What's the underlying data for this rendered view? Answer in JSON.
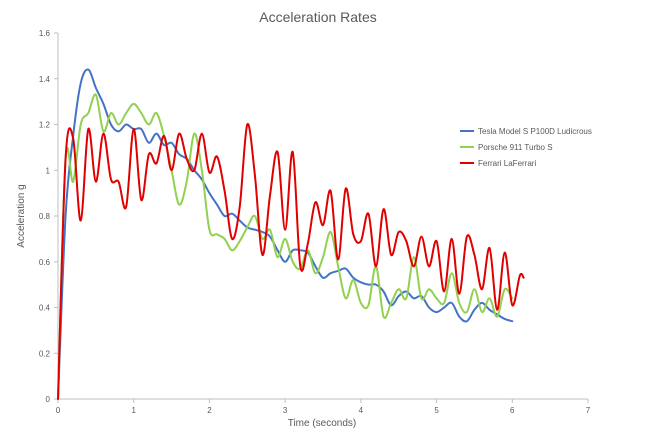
{
  "chart_data": {
    "type": "line",
    "title": "Acceleration Rates",
    "xlabel": "Time (seconds)",
    "ylabel": "Acceleration g",
    "xlim": [
      0,
      7
    ],
    "ylim": [
      0,
      1.6
    ],
    "xticks": [
      "0",
      "1",
      "2",
      "3",
      "4",
      "5",
      "6",
      "7"
    ],
    "yticks": [
      "0",
      "0.2",
      "0.4",
      "0.6",
      "0.8",
      "1",
      "1.2",
      "1.4",
      "1.6"
    ],
    "grid": false,
    "legend_position": "right",
    "series": [
      {
        "name": "Tesla Model S P100D Ludicrous",
        "color": "#4472C4",
        "x": [
          0,
          0.1,
          0.2,
          0.3,
          0.4,
          0.5,
          0.6,
          0.7,
          0.8,
          0.9,
          1.0,
          1.1,
          1.2,
          1.3,
          1.4,
          1.5,
          1.6,
          1.7,
          1.8,
          1.9,
          2.0,
          2.1,
          2.2,
          2.3,
          2.4,
          2.5,
          2.6,
          2.7,
          2.8,
          2.9,
          3.0,
          3.1,
          3.2,
          3.3,
          3.4,
          3.5,
          3.6,
          3.7,
          3.8,
          3.9,
          4.0,
          4.1,
          4.2,
          4.3,
          4.4,
          4.5,
          4.6,
          4.7,
          4.8,
          4.9,
          5.0,
          5.1,
          5.2,
          5.3,
          5.4,
          5.5,
          5.6,
          5.7,
          5.8,
          5.9,
          6.0
        ],
        "y": [
          0,
          0.8,
          1.15,
          1.38,
          1.44,
          1.36,
          1.29,
          1.2,
          1.17,
          1.2,
          1.18,
          1.18,
          1.12,
          1.16,
          1.11,
          1.12,
          1.07,
          1.05,
          1.0,
          0.96,
          0.9,
          0.85,
          0.8,
          0.81,
          0.78,
          0.75,
          0.74,
          0.73,
          0.71,
          0.65,
          0.6,
          0.65,
          0.65,
          0.64,
          0.58,
          0.53,
          0.55,
          0.56,
          0.57,
          0.53,
          0.51,
          0.5,
          0.5,
          0.47,
          0.41,
          0.45,
          0.47,
          0.44,
          0.45,
          0.4,
          0.38,
          0.4,
          0.42,
          0.36,
          0.34,
          0.39,
          0.42,
          0.39,
          0.37,
          0.35,
          0.34
        ]
      },
      {
        "name": "Porsche 911 Turbo S",
        "color": "#92D050",
        "x": [
          0,
          0.1,
          0.2,
          0.3,
          0.4,
          0.5,
          0.6,
          0.7,
          0.8,
          0.9,
          1.0,
          1.1,
          1.2,
          1.3,
          1.4,
          1.5,
          1.6,
          1.7,
          1.8,
          1.9,
          2.0,
          2.1,
          2.2,
          2.3,
          2.4,
          2.5,
          2.6,
          2.7,
          2.8,
          2.9,
          3.0,
          3.1,
          3.2,
          3.3,
          3.4,
          3.5,
          3.6,
          3.7,
          3.8,
          3.9,
          4.0,
          4.1,
          4.2,
          4.3,
          4.4,
          4.5,
          4.6,
          4.7,
          4.8,
          4.9,
          5.0,
          5.1,
          5.2,
          5.3,
          5.4,
          5.5,
          5.6,
          5.7,
          5.8,
          5.9,
          6.0
        ],
        "y": [
          0,
          1.05,
          0.95,
          1.2,
          1.25,
          1.33,
          1.17,
          1.25,
          1.2,
          1.25,
          1.29,
          1.25,
          1.2,
          1.25,
          1.15,
          1.0,
          0.85,
          0.95,
          1.16,
          1.0,
          0.74,
          0.72,
          0.7,
          0.65,
          0.69,
          0.75,
          0.8,
          0.7,
          0.74,
          0.62,
          0.7,
          0.6,
          0.57,
          0.65,
          0.55,
          0.62,
          0.73,
          0.58,
          0.44,
          0.52,
          0.42,
          0.41,
          0.58,
          0.36,
          0.42,
          0.48,
          0.44,
          0.62,
          0.44,
          0.48,
          0.44,
          0.42,
          0.55,
          0.42,
          0.38,
          0.48,
          0.38,
          0.44,
          0.36,
          0.48,
          0.44
        ]
      },
      {
        "name": "Ferrari LaFerrari",
        "color": "#E00000",
        "x": [
          0,
          0.1,
          0.2,
          0.3,
          0.4,
          0.5,
          0.6,
          0.7,
          0.8,
          0.9,
          1.0,
          1.1,
          1.2,
          1.3,
          1.4,
          1.5,
          1.6,
          1.7,
          1.8,
          1.9,
          2.0,
          2.1,
          2.2,
          2.3,
          2.4,
          2.5,
          2.6,
          2.7,
          2.8,
          2.9,
          3.0,
          3.1,
          3.2,
          3.3,
          3.4,
          3.5,
          3.6,
          3.7,
          3.8,
          3.9,
          4.0,
          4.1,
          4.2,
          4.3,
          4.4,
          4.5,
          4.6,
          4.7,
          4.8,
          4.9,
          5.0,
          5.1,
          5.2,
          5.3,
          5.4,
          5.5,
          5.6,
          5.7,
          5.8,
          5.9,
          6.0,
          6.1,
          6.15
        ],
        "y": [
          0,
          1.05,
          1.14,
          0.78,
          1.18,
          0.95,
          1.16,
          0.96,
          0.95,
          0.84,
          1.18,
          0.87,
          1.07,
          1.03,
          1.15,
          1.0,
          1.16,
          1.05,
          1.0,
          1.16,
          0.99,
          1.06,
          0.91,
          0.7,
          0.84,
          1.2,
          0.98,
          0.63,
          0.89,
          1.08,
          0.74,
          1.08,
          0.58,
          0.68,
          0.86,
          0.76,
          0.91,
          0.61,
          0.92,
          0.72,
          0.69,
          0.81,
          0.58,
          0.83,
          0.63,
          0.73,
          0.69,
          0.58,
          0.71,
          0.58,
          0.69,
          0.47,
          0.7,
          0.46,
          0.71,
          0.63,
          0.48,
          0.66,
          0.39,
          0.64,
          0.41,
          0.54,
          0.53
        ]
      }
    ]
  }
}
